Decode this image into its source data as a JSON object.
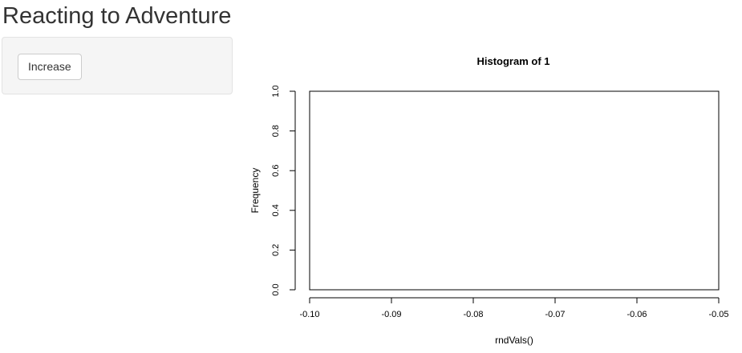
{
  "page": {
    "title": "Reacting to Adventure"
  },
  "sidebar": {
    "increase_button_label": "Increase"
  },
  "colors": {
    "well_background": "#f5f5f5",
    "well_border": "#e3e3e3",
    "text": "#333333",
    "plot_ink": "#000000"
  },
  "chart_data": {
    "type": "bar",
    "title": "Histogram of 1",
    "xlabel": "rndVals()",
    "ylabel": "Frequency",
    "xlim": [
      -0.1,
      -0.05
    ],
    "ylim": [
      0.0,
      1.0
    ],
    "x_ticks": [
      -0.1,
      -0.09,
      -0.08,
      -0.07,
      -0.06,
      -0.05
    ],
    "x_tick_labels": [
      "-0.10",
      "-0.09",
      "-0.08",
      "-0.07",
      "-0.06",
      "-0.05"
    ],
    "y_ticks": [
      0.0,
      0.2,
      0.4,
      0.6,
      0.8,
      1.0
    ],
    "y_tick_labels": [
      "0.0",
      "0.2",
      "0.4",
      "0.6",
      "0.8",
      "1.0"
    ],
    "bins": [],
    "grid": false,
    "legend": "none"
  }
}
